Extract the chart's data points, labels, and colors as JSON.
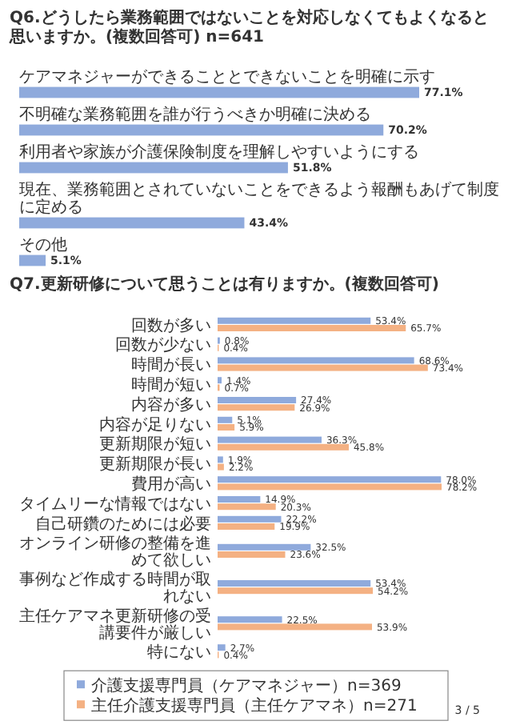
{
  "chart_data": [
    {
      "type": "bar",
      "orientation": "horizontal",
      "title": "Q6.どうしたら業務範囲ではないことを対応しなくてもよくなると思いますか。(複数回答可) n=641",
      "categories": [
        "ケアマネジャーができることとできないことを明確に示す",
        "不明確な業務範囲を誰が行うべきか明確に決める",
        "利用者や家族が介護保険制度を理解しやすいようにする",
        "現在、業務範囲とされていないことをできるよう報酬もあげて制度に定める",
        "その他"
      ],
      "series": [
        {
          "color": "#8faadc",
          "values": [
            77.1,
            70.2,
            51.8,
            43.4,
            5.1
          ],
          "value_labels": [
            "77.1%",
            "70.2%",
            "51.8%",
            "43.4%",
            "5.1%"
          ]
        }
      ]
    },
    {
      "type": "bar",
      "orientation": "horizontal",
      "title": "Q7.更新研修について思うことは有りますか。(複数回答可)",
      "legend": "bottom",
      "categories": [
        "回数が多い",
        "回数が少ない",
        "時間が長い",
        "時間が短い",
        "内容が多い",
        "内容が足りない",
        "更新期限が短い",
        "更新期限が長い",
        "費用が高い",
        "タイムリーな情報ではない",
        "自己研鑽のためには必要",
        "オンライン研修の整備を進めて欲しい",
        "事例など作成する時間が取れない",
        "主任ケアマネ更新研修の受講要件が厳しい",
        "特にない"
      ],
      "series": [
        {
          "name": "介護支援専門員（ケアマネジャー）n=369",
          "color": "#8faadc",
          "values": [
            53.4,
            0.8,
            68.6,
            1.4,
            27.4,
            5.1,
            36.3,
            1.9,
            78.0,
            14.9,
            22.2,
            32.5,
            53.4,
            22.5,
            2.7
          ],
          "value_labels": [
            "53.4%",
            "0.8%",
            "68.6%",
            "1.4%",
            "27.4%",
            "5.1%",
            "36.3%",
            "1.9%",
            "78.0%",
            "14.9%",
            "22.2%",
            "32.5%",
            "53.4%",
            "22.5%",
            "2.7%"
          ]
        },
        {
          "name": "主任介護支援専門員（主任ケアマネ）n=271",
          "color": "#f4b183",
          "values": [
            65.7,
            0.4,
            73.4,
            0.7,
            26.9,
            5.9,
            45.8,
            2.2,
            78.2,
            20.3,
            19.9,
            23.6,
            54.2,
            53.9,
            0.4
          ],
          "value_labels": [
            "65.7%",
            "0.4%",
            "73.4%",
            "0.7%",
            "26.9%",
            "5.9%",
            "45.8%",
            "2.2%",
            "78.2%",
            "20.3%",
            "19.9%",
            "23.6%",
            "54.2%",
            "53.9%",
            "0.4%"
          ]
        }
      ]
    },
    {
      "type": "other",
      "annotations": [
        "3 / 5"
      ]
    }
  ]
}
